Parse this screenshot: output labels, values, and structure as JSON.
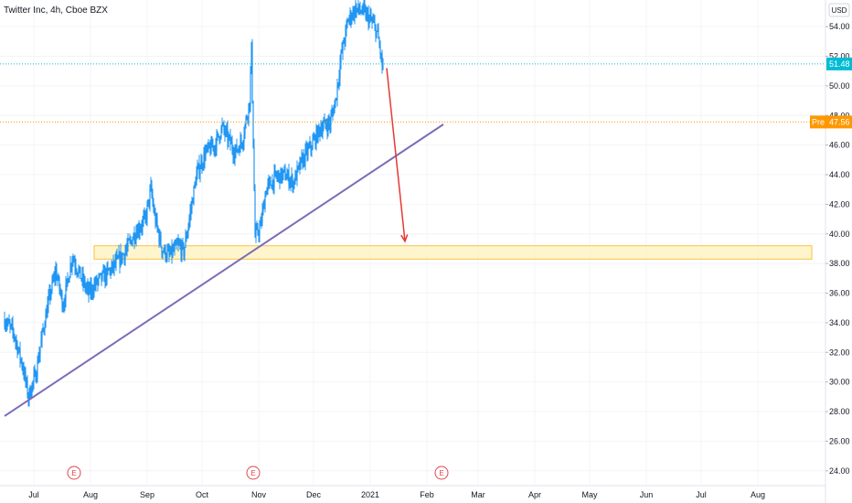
{
  "header": {
    "title": "Twitter Inc, 4h, Cboe BZX"
  },
  "currency_button": "USD",
  "colors": {
    "up": "#2196f3",
    "down": "#2196f3",
    "last_price": "#00bcd4",
    "pre_market": "#ff9800",
    "trendline": "#7e6bb8",
    "zone_fill": "#fff3c4",
    "zone_stroke": "#f5c242",
    "arrow": "#e53935",
    "earnings": "#e0474c"
  },
  "chart_data": {
    "type": "candlestick",
    "symbol": "TWTR",
    "timeframe": "4h",
    "x_ticks": [
      "Jul",
      "Aug",
      "Sep",
      "Oct",
      "Nov",
      "Dec",
      "2021",
      "Feb",
      "Mar",
      "Apr",
      "May",
      "Jun",
      "Jul",
      "Aug"
    ],
    "y_ticks": [
      "24.00",
      "26.00",
      "28.00",
      "30.00",
      "32.00",
      "34.00",
      "36.00",
      "38.00",
      "40.00",
      "42.00",
      "44.00",
      "46.00",
      "48.00",
      "50.00",
      "52.00",
      "54.00"
    ],
    "ylim": [
      23,
      55.8
    ],
    "last_price": {
      "value": 51.48,
      "label": "51.48"
    },
    "pre_market": {
      "prefix": "Pre",
      "value": 47.56,
      "label": "47.56"
    },
    "support_zone": {
      "start": "2020-08-01",
      "end": "2021-08-31",
      "low": 38.3,
      "high": 39.2
    },
    "trendline": {
      "start": {
        "date": "2020-06-15",
        "value": 27.7
      },
      "end": {
        "date": "2021-02-10",
        "value": 47.4
      }
    },
    "projection_arrow": {
      "start": {
        "date": "2021-01-10",
        "value": 51.2
      },
      "end": {
        "date": "2021-01-20",
        "value": 39.5
      }
    },
    "earnings_label": "E",
    "earnings_dates": [
      "2020-07-23",
      "2020-10-29",
      "2021-02-09"
    ],
    "price_path": [
      [
        "2020-06-15",
        34.2
      ],
      [
        "2020-06-20",
        33.3
      ],
      [
        "2020-06-25",
        31.0
      ],
      [
        "2020-06-28",
        29.0
      ],
      [
        "2020-07-02",
        30.5
      ],
      [
        "2020-07-06",
        33.5
      ],
      [
        "2020-07-10",
        36.0
      ],
      [
        "2020-07-13",
        37.5
      ],
      [
        "2020-07-17",
        35.2
      ],
      [
        "2020-07-22",
        38.5
      ],
      [
        "2020-07-27",
        37.0
      ],
      [
        "2020-07-31",
        36.0
      ],
      [
        "2020-08-05",
        36.8
      ],
      [
        "2020-08-10",
        37.3
      ],
      [
        "2020-08-15",
        38.0
      ],
      [
        "2020-08-20",
        38.8
      ],
      [
        "2020-08-25",
        40.0
      ],
      [
        "2020-08-31",
        41.0
      ],
      [
        "2020-09-03",
        43.0
      ],
      [
        "2020-09-05",
        41.2
      ],
      [
        "2020-09-09",
        39.0
      ],
      [
        "2020-09-13",
        38.5
      ],
      [
        "2020-09-18",
        39.2
      ],
      [
        "2020-09-21",
        38.8
      ],
      [
        "2020-09-24",
        41.0
      ],
      [
        "2020-09-28",
        44.0
      ],
      [
        "2020-10-03",
        45.5
      ],
      [
        "2020-10-08",
        46.0
      ],
      [
        "2020-10-12",
        47.2
      ],
      [
        "2020-10-15",
        46.5
      ],
      [
        "2020-10-19",
        45.5
      ],
      [
        "2020-10-23",
        46.3
      ],
      [
        "2020-10-27",
        49.0
      ],
      [
        "2020-10-28",
        52.5
      ],
      [
        "2020-10-30",
        39.8
      ],
      [
        "2020-11-02",
        40.5
      ],
      [
        "2020-11-05",
        43.0
      ],
      [
        "2020-11-10",
        43.8
      ],
      [
        "2020-11-15",
        44.0
      ],
      [
        "2020-11-20",
        43.5
      ],
      [
        "2020-11-25",
        45.0
      ],
      [
        "2020-11-30",
        46.0
      ],
      [
        "2020-12-05",
        47.2
      ],
      [
        "2020-12-10",
        47.5
      ],
      [
        "2020-12-13",
        49.0
      ],
      [
        "2020-12-16",
        52.0
      ],
      [
        "2020-12-20",
        54.5
      ],
      [
        "2020-12-24",
        55.2
      ],
      [
        "2020-12-28",
        55.0
      ],
      [
        "2021-01-02",
        54.3
      ],
      [
        "2021-01-05",
        53.5
      ],
      [
        "2021-01-08",
        51.0
      ]
    ]
  }
}
